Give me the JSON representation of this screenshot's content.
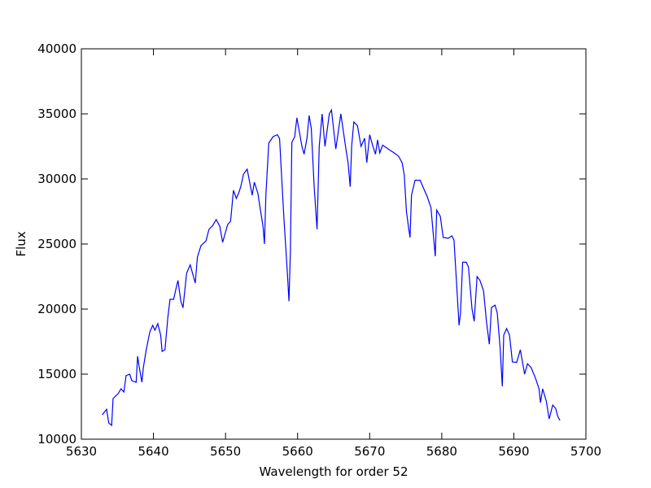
{
  "chart_data": {
    "type": "line",
    "xlabel": "Wavelength for order 52",
    "ylabel": "Flux",
    "xlim": [
      5630,
      5700
    ],
    "ylim": [
      10000,
      40000
    ],
    "xticks": [
      5630,
      5640,
      5650,
      5660,
      5670,
      5680,
      5690,
      5700
    ],
    "yticks": [
      10000,
      15000,
      20000,
      25000,
      30000,
      35000,
      40000
    ],
    "series": [
      {
        "color": "#0000ff",
        "x": [
          5632.9,
          5633.5,
          5633.8,
          5634.2,
          5634.4,
          5635.1,
          5635.5,
          5635.9,
          5636.2,
          5636.7,
          5637.0,
          5637.6,
          5637.8,
          5638.0,
          5638.4,
          5638.6,
          5639.0,
          5639.5,
          5639.9,
          5640.2,
          5640.6,
          5641.0,
          5641.2,
          5641.6,
          5642.0,
          5642.3,
          5642.8,
          5643.1,
          5643.4,
          5643.8,
          5644.1,
          5644.6,
          5645.1,
          5645.8,
          5646.1,
          5646.6,
          5647.3,
          5647.7,
          5648.2,
          5648.7,
          5649.2,
          5649.6,
          5650.3,
          5650.7,
          5651.1,
          5651.5,
          5651.8,
          5652.1,
          5652.5,
          5653.0,
          5653.7,
          5654.0,
          5654.5,
          5654.8,
          5655.2,
          5655.4,
          5655.6,
          5656.0,
          5656.6,
          5657.2,
          5657.5,
          5657.8,
          5658.1,
          5658.6,
          5658.8,
          5659.0,
          5659.2,
          5659.6,
          5659.9,
          5660.6,
          5660.9,
          5661.3,
          5661.6,
          5661.9,
          5662.3,
          5662.7,
          5663.0,
          5663.4,
          5663.8,
          5664.4,
          5664.7,
          5665.3,
          5666.0,
          5666.7,
          5667.0,
          5667.3,
          5667.5,
          5667.8,
          5668.3,
          5668.8,
          5669.3,
          5669.6,
          5670.0,
          5670.4,
          5670.8,
          5671.1,
          5671.4,
          5671.8,
          5672.7,
          5673.4,
          5674.0,
          5674.5,
          5674.8,
          5675.1,
          5675.4,
          5675.6,
          5675.8,
          5676.3,
          5677.0,
          5677.5,
          5678.0,
          5678.5,
          5678.9,
          5679.1,
          5679.3,
          5679.8,
          5680.2,
          5680.9,
          5681.4,
          5681.7,
          5682.0,
          5682.4,
          5682.6,
          5682.9,
          5683.4,
          5683.7,
          5684.2,
          5684.5,
          5684.9,
          5685.3,
          5685.8,
          5686.2,
          5686.6,
          5686.9,
          5687.4,
          5687.7,
          5688.1,
          5688.4,
          5688.6,
          5689.0,
          5689.4,
          5689.8,
          5690.4,
          5690.9,
          5691.5,
          5691.9,
          5692.4,
          5693.0,
          5693.5,
          5693.7,
          5694.0,
          5694.5,
          5694.9,
          5695.4,
          5695.8,
          5696.1,
          5696.4
        ],
        "values": [
          11875,
          12300,
          11250,
          11060,
          13125,
          13500,
          13875,
          13625,
          14875,
          15000,
          14500,
          14375,
          16375,
          15625,
          14375,
          15500,
          16875,
          18250,
          18750,
          18375,
          18875,
          18000,
          16750,
          16875,
          19375,
          20750,
          20750,
          21500,
          22200,
          20600,
          20100,
          22750,
          23400,
          22000,
          24000,
          24875,
          25250,
          26125,
          26400,
          26875,
          26375,
          25125,
          26500,
          26750,
          29125,
          28500,
          28875,
          29375,
          30375,
          30750,
          28750,
          29750,
          28875,
          27750,
          26375,
          25000,
          28750,
          32750,
          33250,
          33400,
          33100,
          30000,
          27000,
          22600,
          20600,
          24375,
          32800,
          33250,
          34700,
          32500,
          31900,
          33125,
          34875,
          33875,
          29375,
          26125,
          32500,
          35000,
          32500,
          35000,
          35300,
          32300,
          35000,
          32300,
          31250,
          29400,
          32500,
          34375,
          34100,
          32500,
          33125,
          31250,
          33400,
          32600,
          31900,
          33000,
          32000,
          32600,
          32250,
          32000,
          31750,
          31250,
          30300,
          27500,
          26250,
          25500,
          28750,
          29900,
          29900,
          29250,
          28625,
          27800,
          25300,
          24060,
          27600,
          27125,
          25500,
          25440,
          25625,
          25300,
          22500,
          18750,
          19700,
          23600,
          23600,
          23250,
          20000,
          19060,
          22500,
          22200,
          21400,
          19060,
          17300,
          20125,
          20300,
          19700,
          17000,
          14060,
          18000,
          18500,
          18000,
          15940,
          15900,
          16875,
          15000,
          15800,
          15500,
          14700,
          13875,
          12800,
          13875,
          12940,
          11560,
          12625,
          12375,
          11750,
          11440
        ]
      }
    ]
  }
}
